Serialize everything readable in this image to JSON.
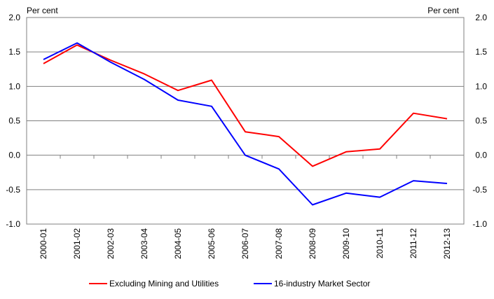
{
  "chart_data": {
    "type": "line",
    "title": "",
    "y_unit_left": "Per cent",
    "y_unit_right": "Per cent",
    "ylim": [
      -1.0,
      2.0
    ],
    "yticks": [
      "2.0",
      "1.5",
      "1.0",
      "0.5",
      "0.0",
      "-0.5",
      "-1.0"
    ],
    "ytick_values": [
      2.0,
      1.5,
      1.0,
      0.5,
      0.0,
      -0.5,
      -1.0
    ],
    "grid": true,
    "legend_position": "bottom",
    "categories": [
      "2000-01",
      "2001-02",
      "2002-03",
      "2003-04",
      "2004-05",
      "2005-06",
      "2006-07",
      "2007-08",
      "2008-09",
      "2009-10",
      "2010-11",
      "2011-12",
      "2012-13"
    ],
    "series": [
      {
        "name": "Excluding Mining and Utilities",
        "color": "#ff0000",
        "values": [
          1.33,
          1.6,
          1.38,
          1.18,
          0.94,
          1.09,
          0.34,
          0.27,
          -0.16,
          0.05,
          0.09,
          0.61,
          0.53
        ]
      },
      {
        "name": "16-industry Market Sector",
        "color": "#0000ff",
        "values": [
          1.39,
          1.63,
          1.35,
          1.1,
          0.8,
          0.71,
          0.0,
          -0.2,
          -0.72,
          -0.55,
          -0.61,
          -0.37,
          -0.41
        ]
      }
    ]
  }
}
